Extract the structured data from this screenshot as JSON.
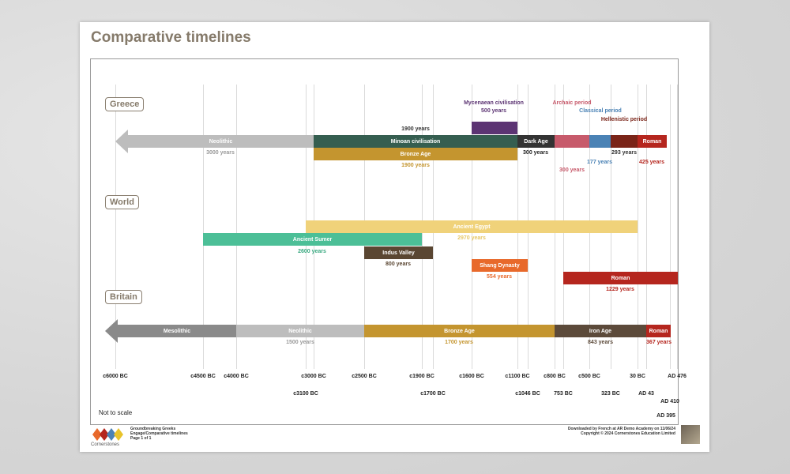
{
  "title": "Comparative timelines",
  "sections": {
    "greece": "Greece",
    "world": "World",
    "britain": "Britain"
  },
  "greece": {
    "neolithic": {
      "label": "Neolithic",
      "years": "3000 years"
    },
    "minoan": {
      "label": "Minoan civilisation",
      "years": "1900 years"
    },
    "bronze": {
      "label": "Bronze Age",
      "years": "1900 years"
    },
    "mycenaean": {
      "label": "Mycenaean civilisation",
      "years": "500 years"
    },
    "dark": {
      "label": "Dark Age",
      "years": "300 years"
    },
    "archaic": {
      "label": "Archaic period",
      "years": "300 years"
    },
    "classical": {
      "label": "Classical period",
      "years": "177 years"
    },
    "hellenistic": {
      "label": "Hellenistic period",
      "years": "293 years"
    },
    "roman": {
      "label": "Roman",
      "years": "425 years"
    }
  },
  "world": {
    "egypt": {
      "label": "Ancient Egypt",
      "years": "2970 years"
    },
    "sumer": {
      "label": "Ancient Sumer",
      "years": "2600 years"
    },
    "indus": {
      "label": "Indus Valley",
      "years": "800 years"
    },
    "shang": {
      "label": "Shang Dynasty",
      "years": "554 years"
    },
    "roman": {
      "label": "Roman",
      "years": "1229 years"
    }
  },
  "britain": {
    "mesolithic": {
      "label": "Mesolithic"
    },
    "neolithic": {
      "label": "Neolithic",
      "years": "1500 years"
    },
    "bronze": {
      "label": "Bronze Age",
      "years": "1700 years"
    },
    "iron": {
      "label": "Iron Age",
      "years": "843 years"
    },
    "roman": {
      "label": "Roman",
      "years": "367 years"
    }
  },
  "ticks_row1": [
    "c6000 BC",
    "c4500 BC",
    "c4000 BC",
    "c3000 BC",
    "c2500 BC",
    "c1900 BC",
    "c1600 BC",
    "c1100 BC",
    "c800 BC",
    "c500 BC",
    "30 BC",
    "AD 476"
  ],
  "ticks_row2": [
    "c3100 BC",
    "c1700 BC",
    "c1046 BC",
    "753 BC",
    "323 BC",
    "AD 43"
  ],
  "ticks_row3": [
    "AD 410"
  ],
  "ticks_row4": [
    "AD 395"
  ],
  "note": "Not to scale",
  "footer_left": [
    "Groundbreaking Greeks",
    "Engage/Comparative timelines",
    "Page 1 of 1"
  ],
  "footer_right": [
    "Downloaded by French at AR Demo Academy on 11/06/24",
    "Copyright © 2024 Cornerstones Education Limited"
  ],
  "logo_text": "Cornerstones",
  "colors": {
    "neolithic_grey": "#bdbdbd",
    "minoan": "#355e50",
    "bronze": "#c4952f",
    "mycenaean": "#5c3473",
    "dark": "#333333",
    "archaic": "#c75a6b",
    "classical": "#4a82b5",
    "hellenistic": "#7a2418",
    "roman_red": "#b5261e",
    "egypt": "#f0d27a",
    "sumer": "#4cbf97",
    "indus": "#5a4632",
    "shang": "#e8692b",
    "mesolithic": "#8a8a8a",
    "britain_neolithic": "#bdbdbd",
    "iron": "#5c4a3a",
    "title": "#857a6a"
  }
}
